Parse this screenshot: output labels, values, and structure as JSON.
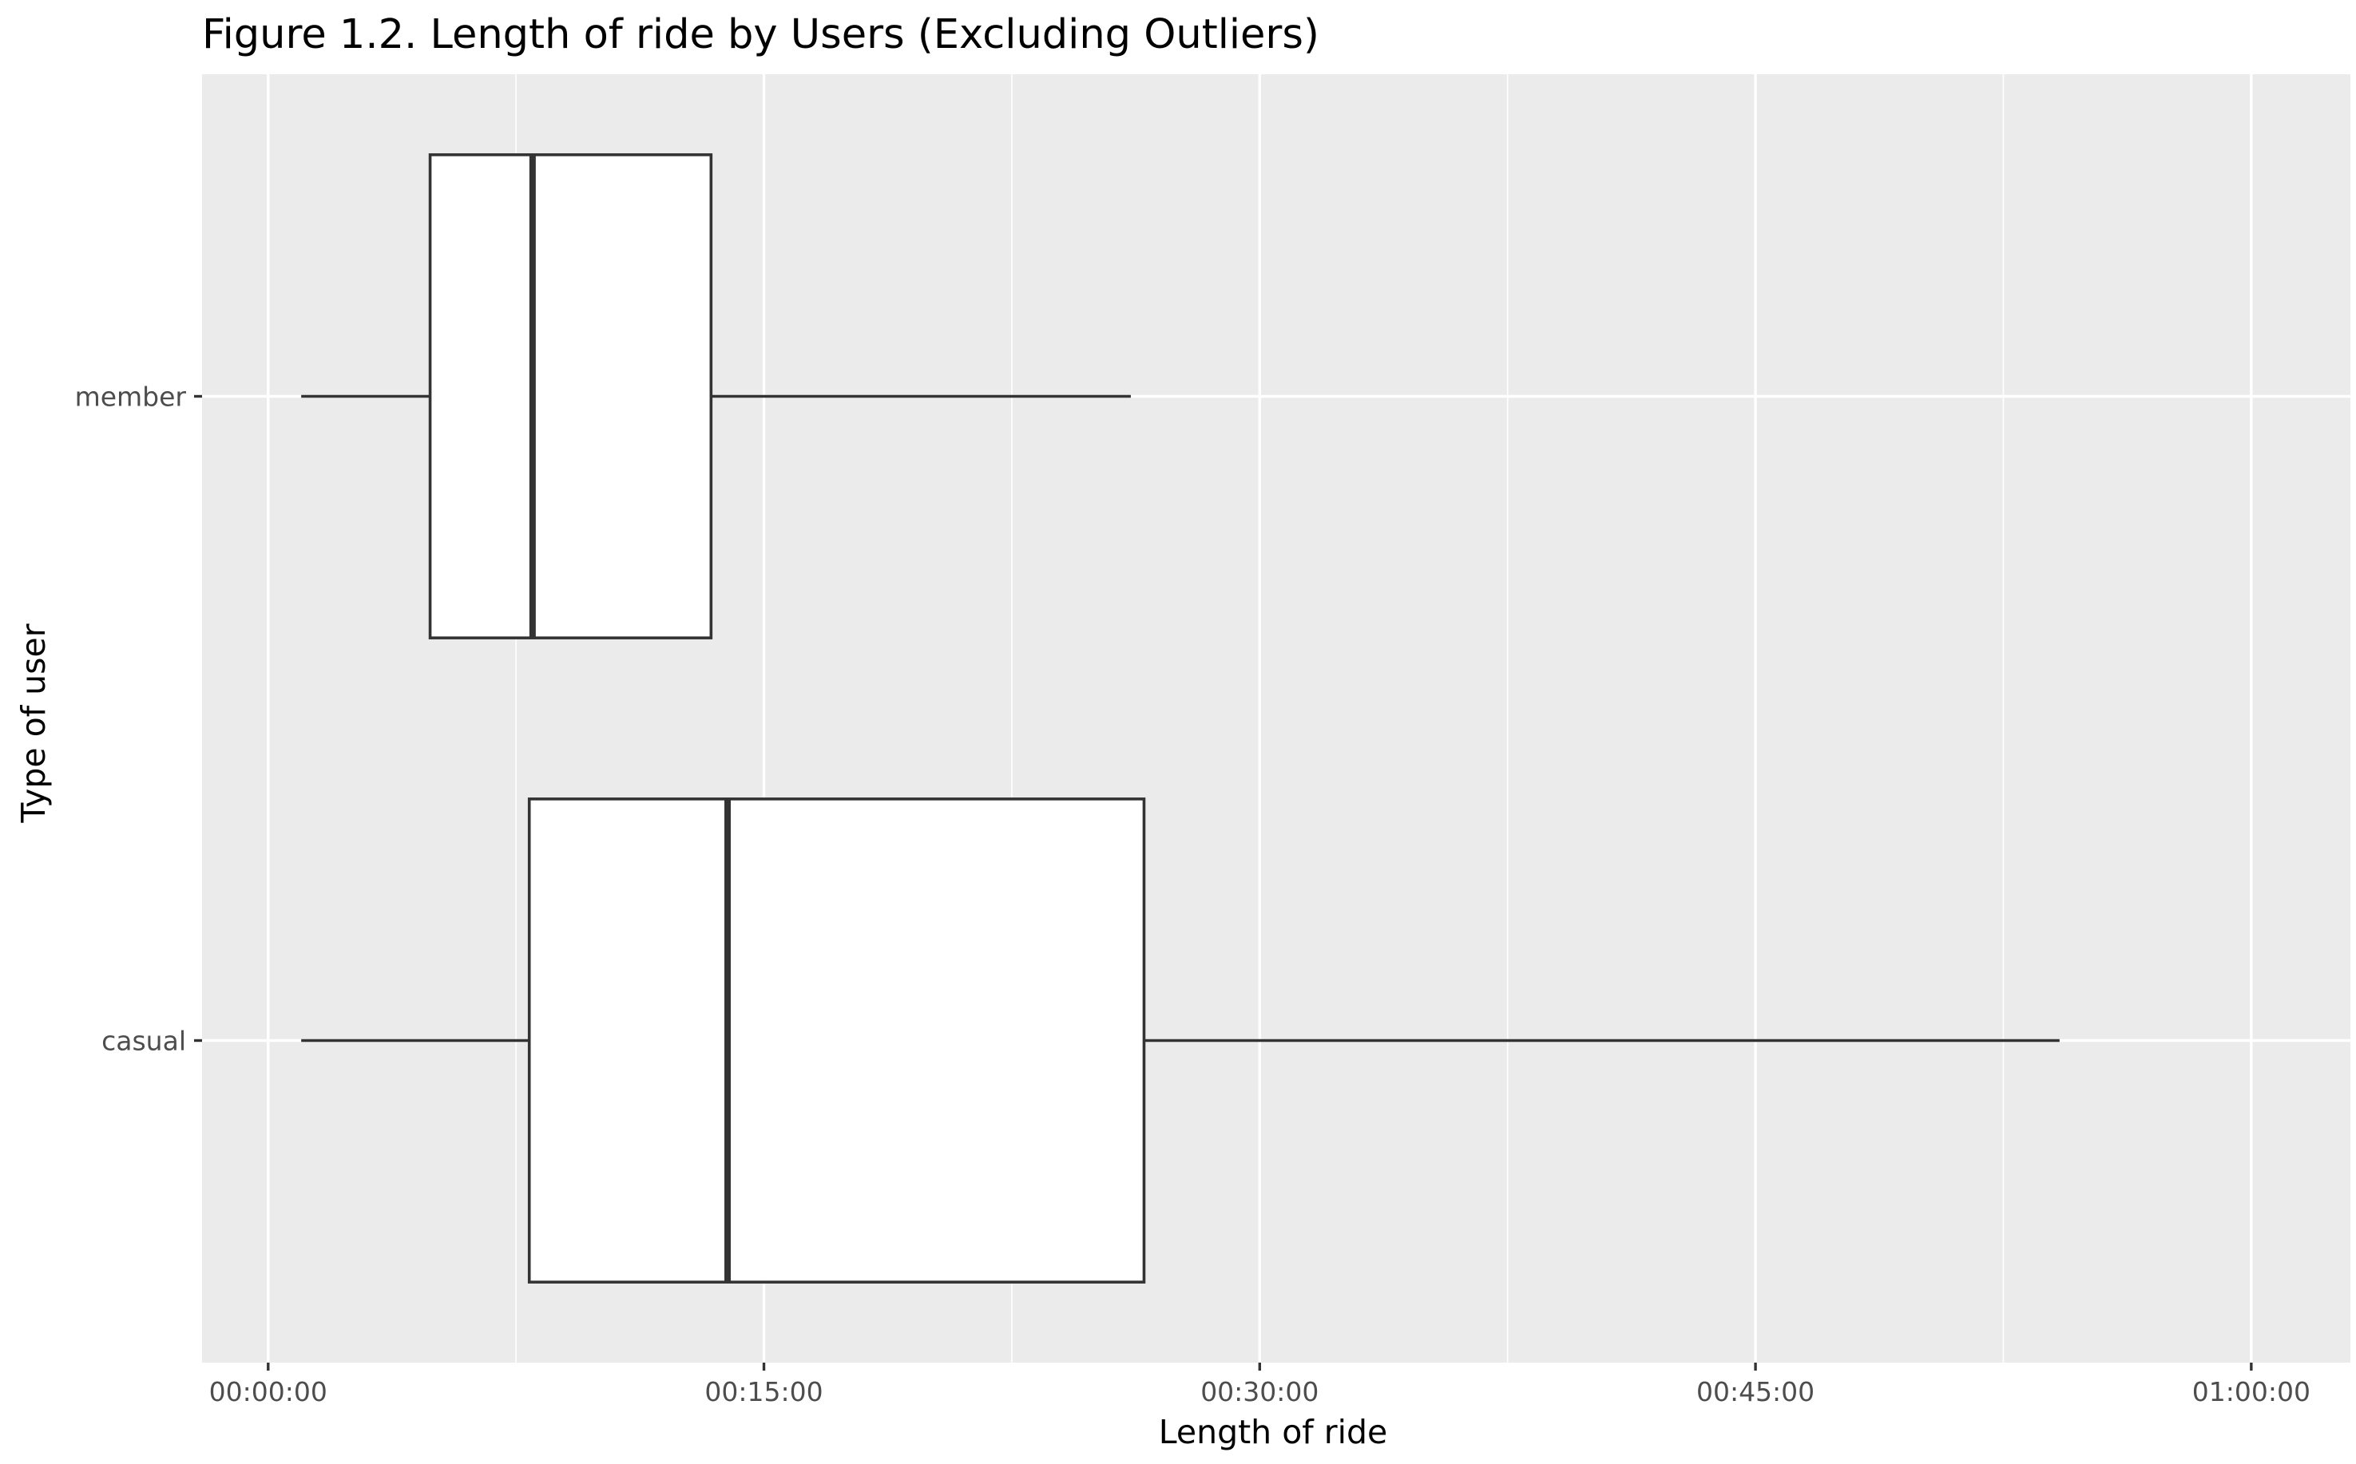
{
  "chart_data": {
    "type": "boxplot",
    "orientation": "horizontal",
    "title": "Figure 1.2. Length of ride by Users (Excluding Outliers)",
    "xlabel": "Length of ride",
    "ylabel": "Type of user",
    "x_unit": "minutes",
    "xlim": [
      -2,
      63
    ],
    "x_ticks": [
      {
        "value": 0,
        "label": "00:00:00"
      },
      {
        "value": 15,
        "label": "00:15:00"
      },
      {
        "value": 30,
        "label": "00:30:00"
      },
      {
        "value": 45,
        "label": "00:45:00"
      },
      {
        "value": 60,
        "label": "01:00:00"
      }
    ],
    "x_minor_ticks": [
      7.5,
      22.5,
      37.5,
      52.5
    ],
    "categories": [
      "casual",
      "member"
    ],
    "boxes": [
      {
        "category": "casual",
        "min": 1,
        "q1": 7.9,
        "median": 13.9,
        "q3": 26.5,
        "max": 54.2
      },
      {
        "category": "member",
        "min": 1,
        "q1": 4.9,
        "median": 8.0,
        "q3": 13.4,
        "max": 26.1
      }
    ],
    "grid": true,
    "legend": "none",
    "colors": {
      "panel": "#ebebeb",
      "grid_major": "#ffffff",
      "grid_minor": "#ffffff",
      "box_fill": "#ffffff",
      "box_stroke": "#333333",
      "tick": "#333333"
    }
  }
}
